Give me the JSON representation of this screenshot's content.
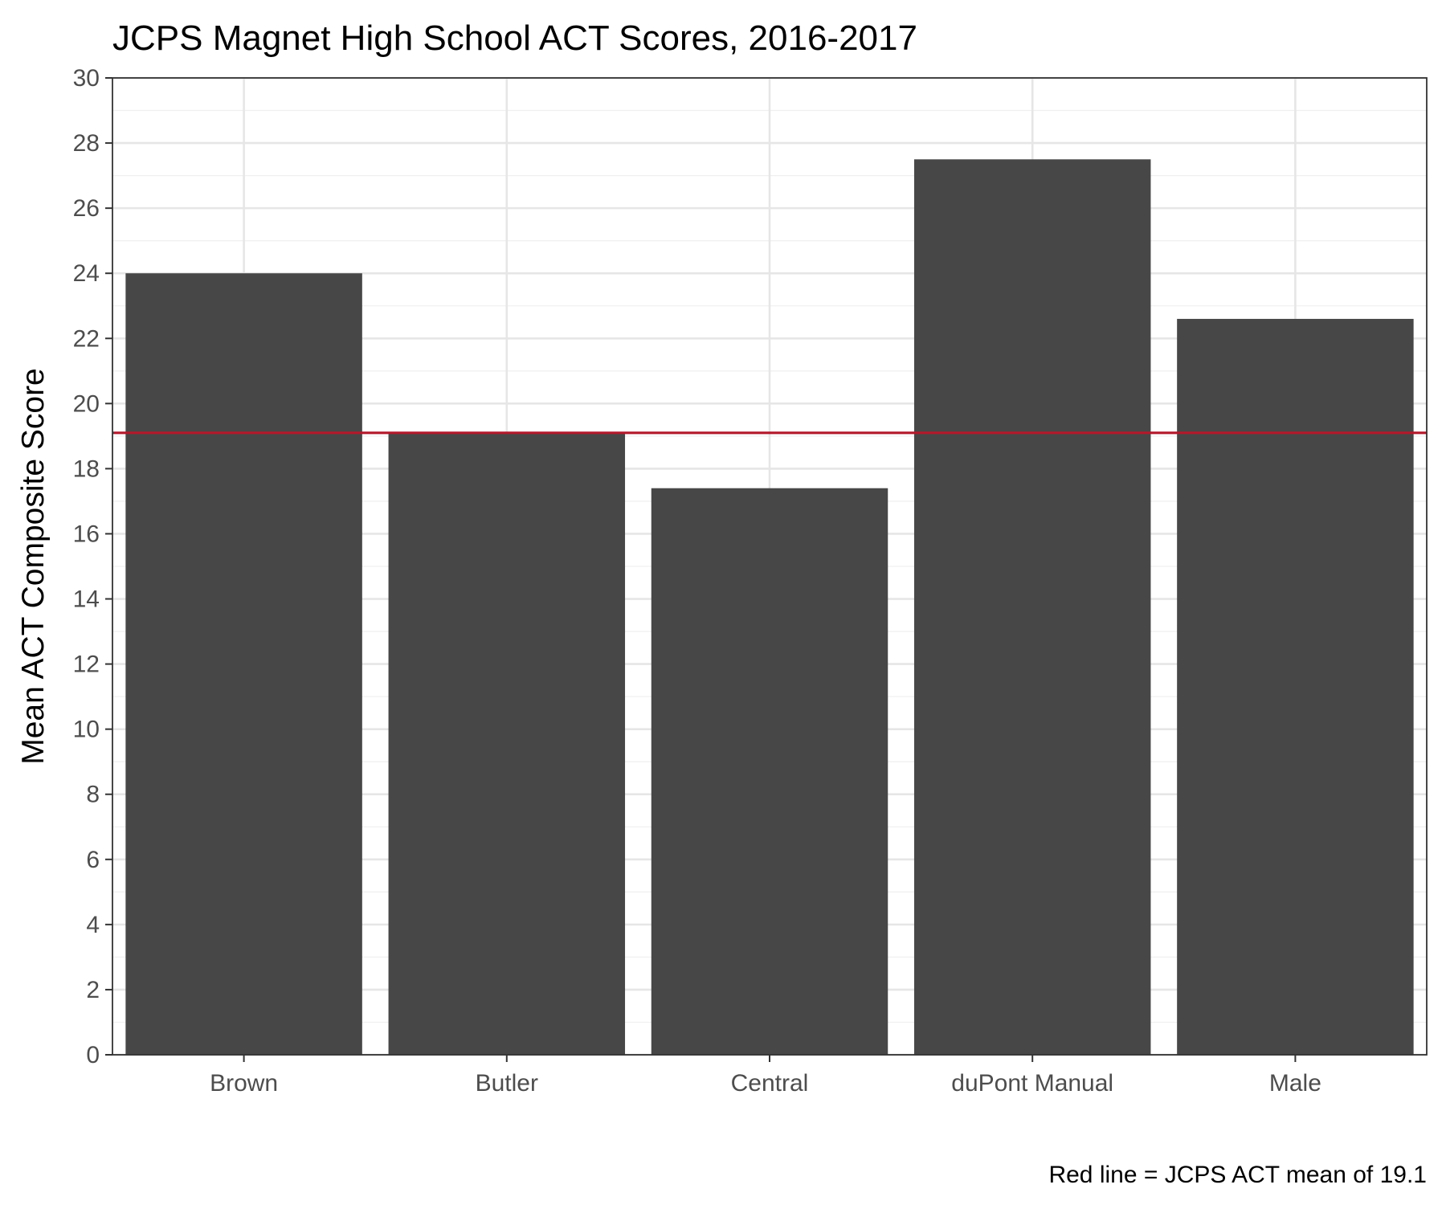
{
  "chart_data": {
    "type": "bar",
    "title": "JCPS Magnet High School ACT Scores, 2016-2017",
    "xlabel": "",
    "ylabel": "Mean ACT Composite Score",
    "categories": [
      "Brown",
      "Butler",
      "Central",
      "duPont Manual",
      "Male"
    ],
    "values": [
      24.0,
      19.1,
      17.4,
      27.5,
      22.6
    ],
    "ylim": [
      0,
      30
    ],
    "yticks": [
      0,
      2,
      4,
      6,
      8,
      10,
      12,
      14,
      16,
      18,
      20,
      22,
      24,
      26,
      28,
      30
    ],
    "reference_line": {
      "value": 19.1,
      "color": "#b2182b"
    },
    "caption": "Red line = JCPS ACT mean of 19.1",
    "bar_color": "#474747",
    "grid": true,
    "legend": "none"
  }
}
